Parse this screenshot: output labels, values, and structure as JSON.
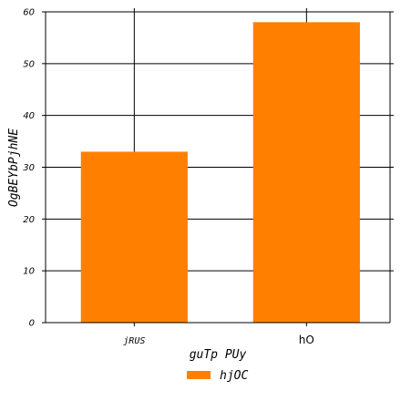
{
  "chart_data": {
    "type": "bar",
    "categories": [
      "jRUS",
      "hO"
    ],
    "series": [
      {
        "name": "hjOC",
        "values": [
          33,
          58
        ],
        "color": "#ff8000"
      }
    ],
    "xlabel": "guTp PUy",
    "ylabel": "OgBEYbPjhNE",
    "ylim": [
      0,
      60
    ],
    "yticks": [
      0,
      10,
      20,
      30,
      40,
      50,
      60
    ],
    "grid": true,
    "legend_position": "bottom-center"
  }
}
